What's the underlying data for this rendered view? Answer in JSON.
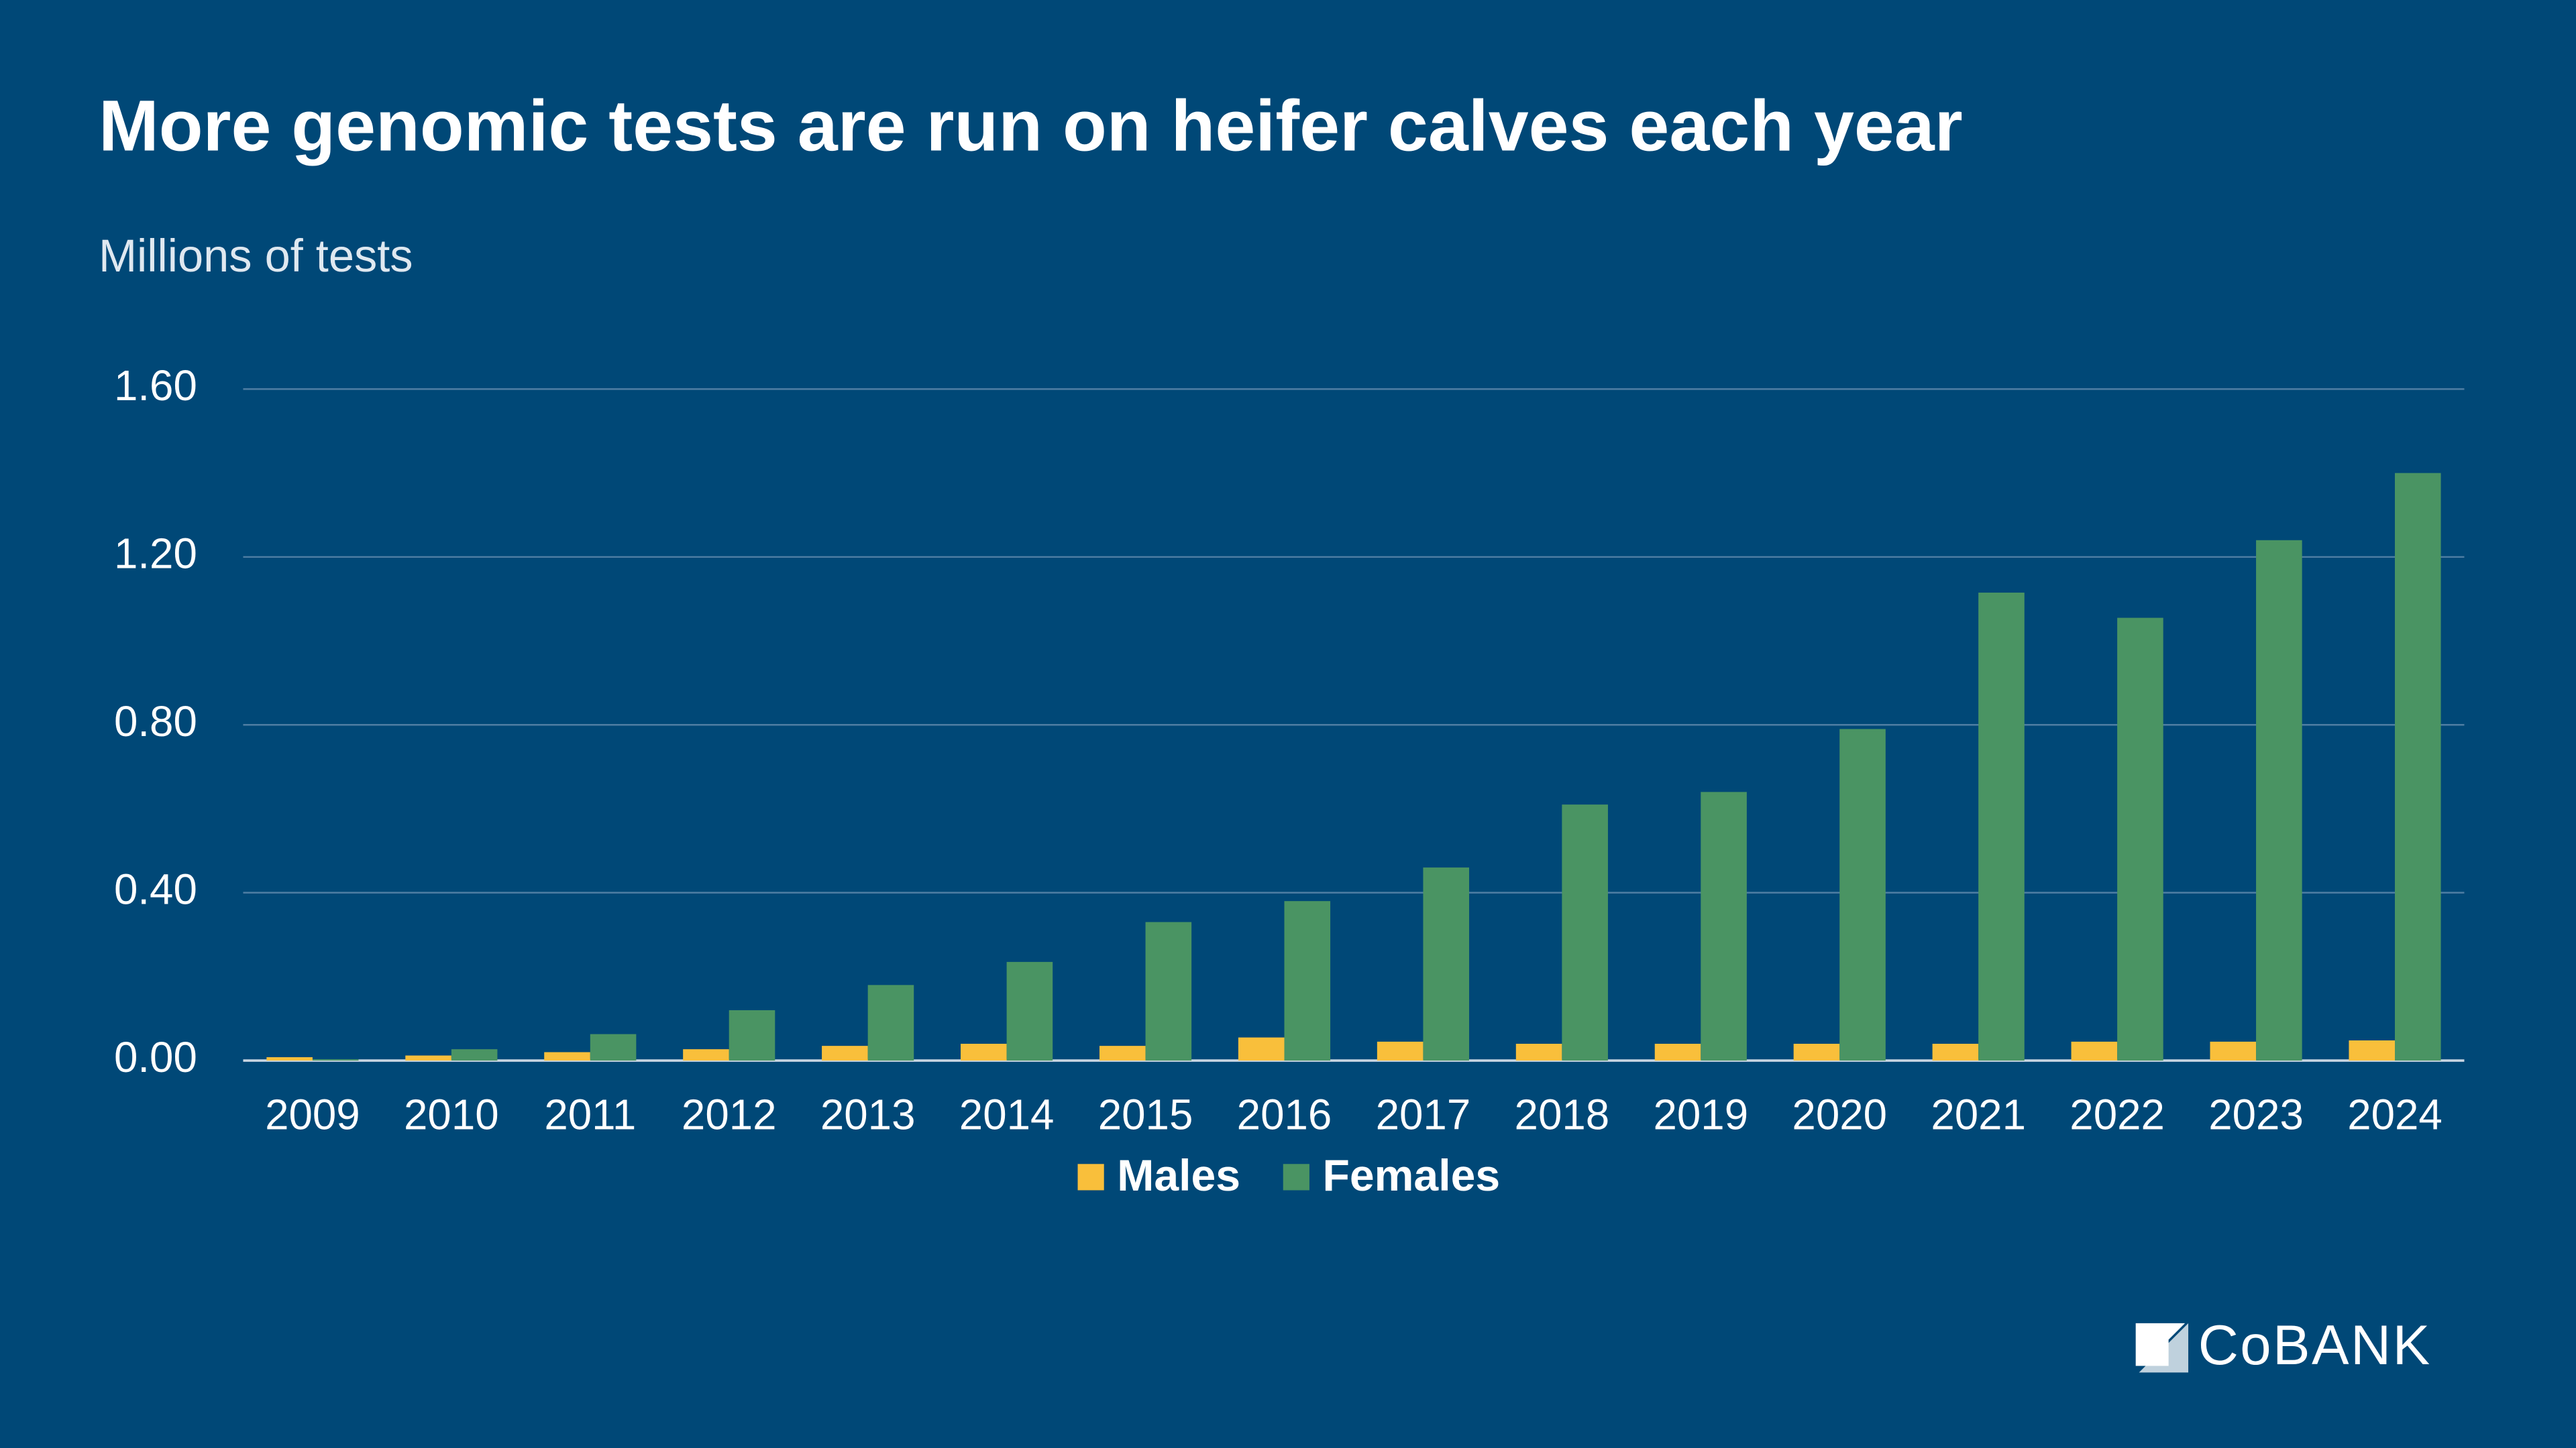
{
  "chart_data": {
    "type": "bar",
    "title": "More genomic tests are run on heifer calves each year",
    "subtitle": "Millions of tests",
    "categories": [
      "2009",
      "2010",
      "2011",
      "2012",
      "2013",
      "2014",
      "2015",
      "2016",
      "2017",
      "2018",
      "2019",
      "2020",
      "2021",
      "2022",
      "2023",
      "2024"
    ],
    "series": [
      {
        "name": "Males",
        "color": "#f9bf3b",
        "values": [
          0.008,
          0.012,
          0.02,
          0.027,
          0.035,
          0.04,
          0.035,
          0.055,
          0.045,
          0.04,
          0.04,
          0.04,
          0.04,
          0.045,
          0.045,
          0.048
        ]
      },
      {
        "name": "Females",
        "color": "#4a9463",
        "values": [
          0.003,
          0.027,
          0.063,
          0.12,
          0.18,
          0.235,
          0.33,
          0.38,
          0.46,
          0.61,
          0.64,
          0.79,
          1.115,
          1.055,
          1.24,
          1.4
        ]
      }
    ],
    "ylim": [
      0,
      1.6
    ],
    "yticks": [
      {
        "value": 0,
        "label": "0.00"
      },
      {
        "value": 0.4,
        "label": "0.40"
      },
      {
        "value": 0.8,
        "label": "0.80"
      },
      {
        "value": 1.2,
        "label": "1.20"
      },
      {
        "value": 1.6,
        "label": "1.60"
      }
    ],
    "grid": true,
    "legend": "bottom",
    "logo": "CoBANK"
  }
}
